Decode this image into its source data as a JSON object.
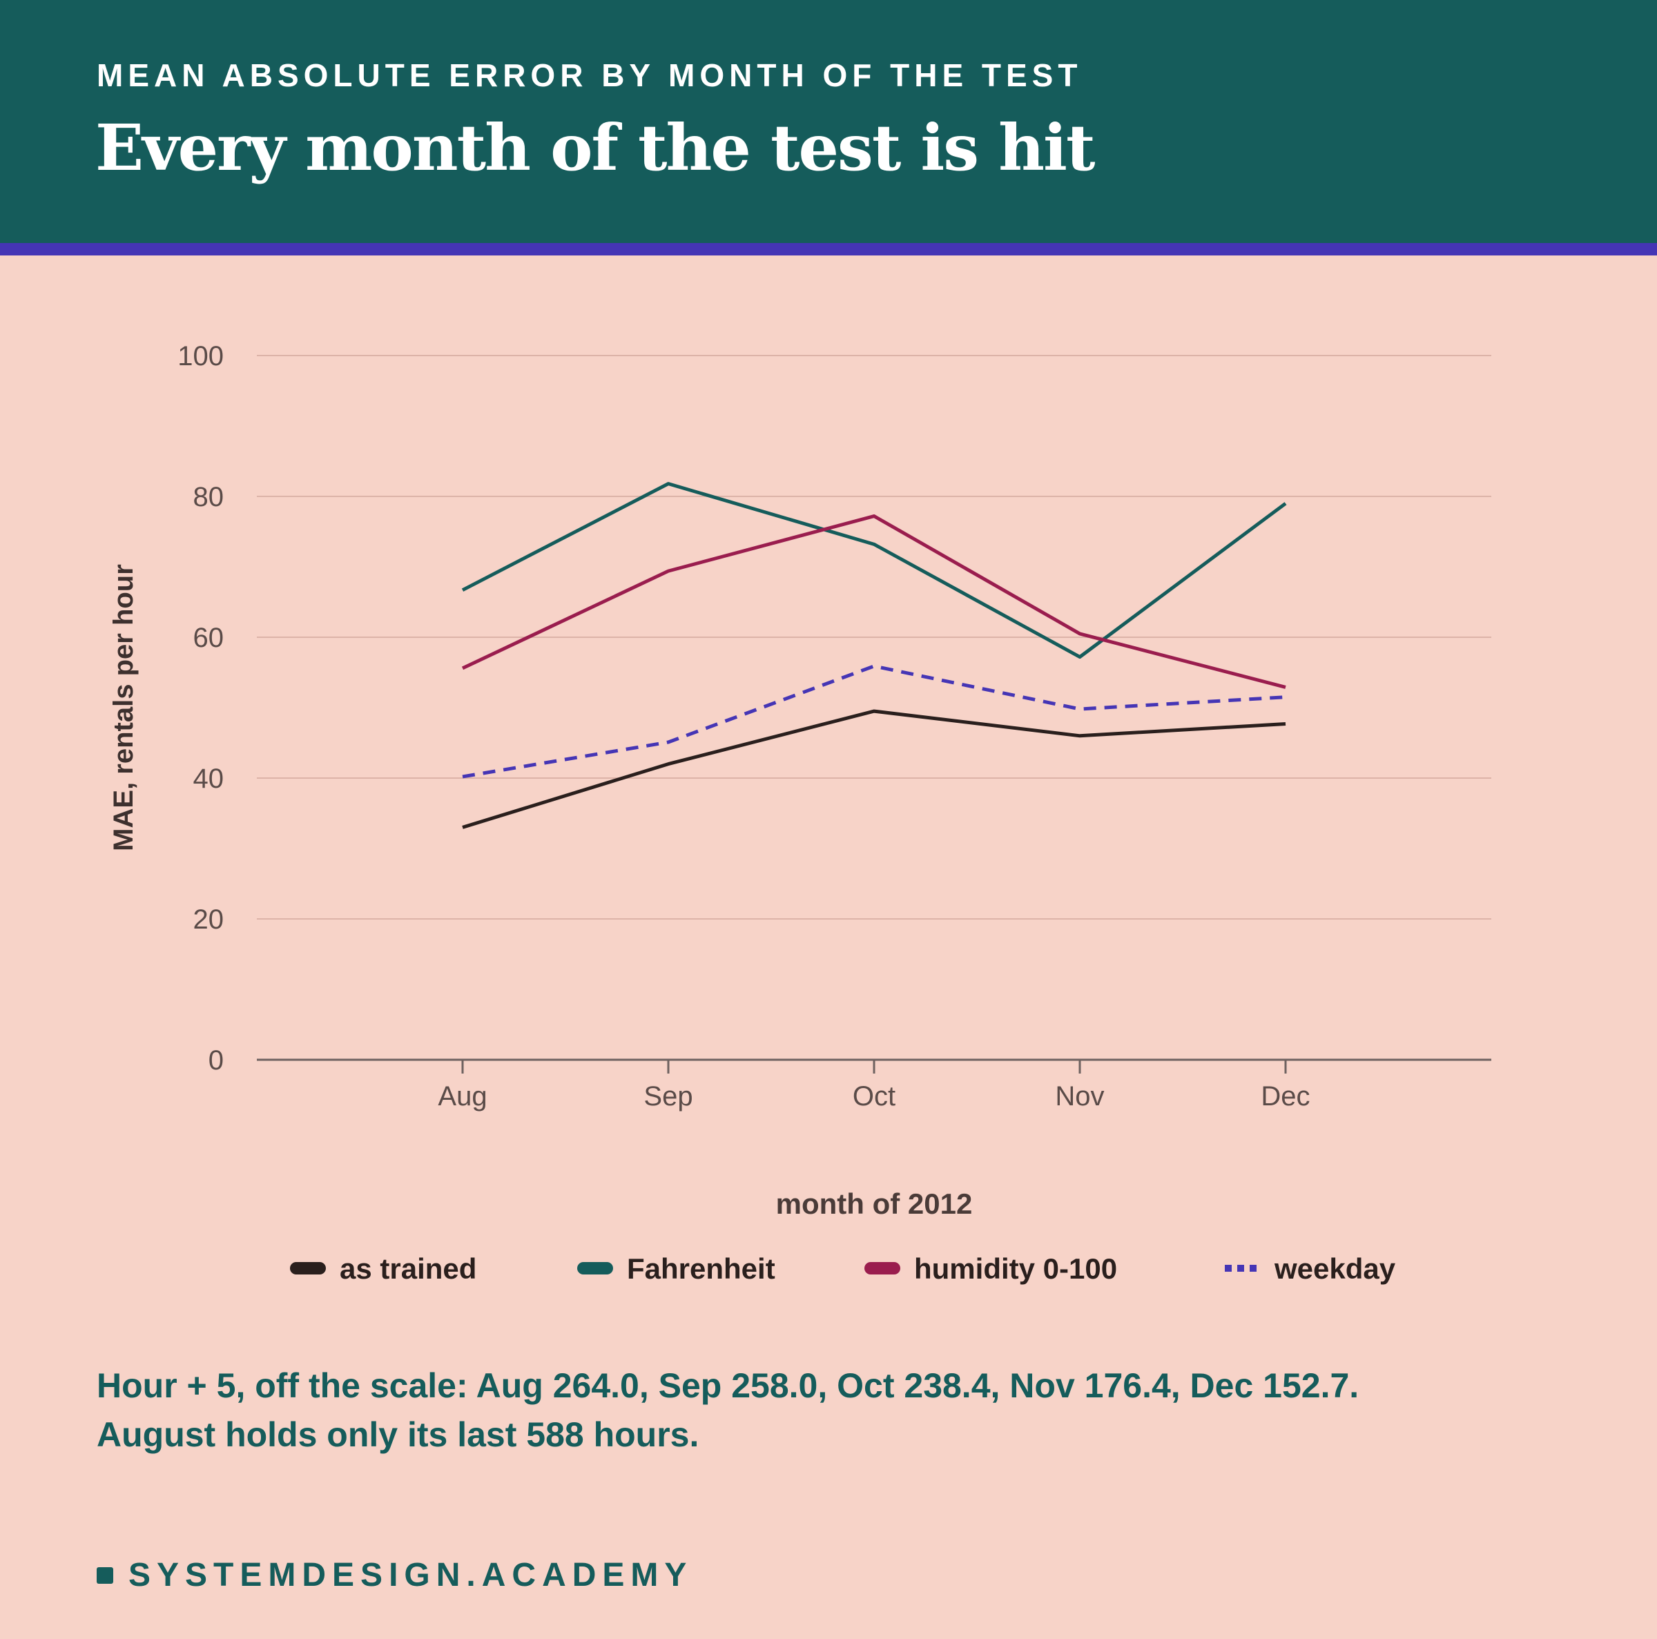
{
  "header": {
    "kicker": "MEAN ABSOLUTE ERROR BY MONTH OF THE TEST",
    "title": "Every month of the test is hit"
  },
  "colors": {
    "header_bg": "#155c5b",
    "accent_rule": "#4535b5",
    "background": "#f7d3c8"
  },
  "chart_data": {
    "type": "line",
    "title": "",
    "xlabel": "month of 2012",
    "ylabel": "MAE, rentals per hour",
    "categories": [
      "Aug",
      "Sep",
      "Oct",
      "Nov",
      "Dec"
    ],
    "ylim": [
      0,
      100
    ],
    "yticks": [
      0,
      20,
      40,
      60,
      80,
      100
    ],
    "grid": true,
    "legend_position": "bottom",
    "series": [
      {
        "name": "as trained",
        "color": "#2a1f1d",
        "dashed": false,
        "values": [
          33.0,
          42.0,
          49.5,
          46.0,
          47.7
        ]
      },
      {
        "name": "Fahrenheit",
        "color": "#155c5b",
        "dashed": false,
        "values": [
          66.7,
          81.8,
          73.2,
          57.2,
          79.0
        ]
      },
      {
        "name": "humidity 0-100",
        "color": "#9a1d4e",
        "dashed": false,
        "values": [
          55.6,
          69.4,
          77.2,
          60.5,
          52.9
        ]
      },
      {
        "name": "weekday",
        "color": "#4535b5",
        "dashed": true,
        "values": [
          40.2,
          45.1,
          55.9,
          49.8,
          51.5
        ]
      }
    ]
  },
  "note": {
    "line1": "Hour + 5, off the scale: Aug 264.0, Sep 258.0, Oct 238.4, Nov 176.4, Dec 152.7.",
    "line2": "August holds only its last 588 hours."
  },
  "brand": {
    "name": "SYSTEMDESIGN.ACADEMY"
  }
}
